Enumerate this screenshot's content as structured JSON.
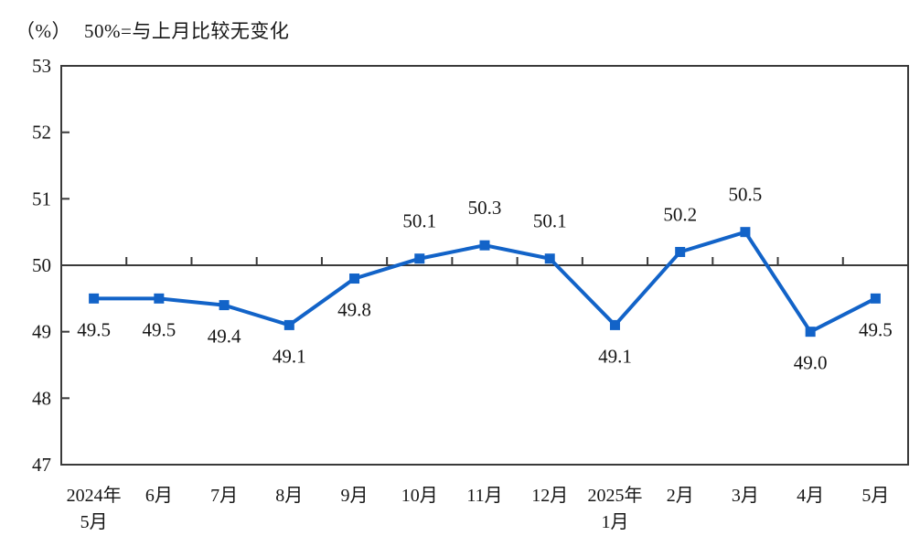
{
  "header": {
    "unit": "（%）",
    "title": "50%=与上月比较无变化"
  },
  "chart_data": {
    "type": "line",
    "title": "50%=与上月比较无变化",
    "unit_label": "（%）",
    "categories": [
      {
        "top": "2024年",
        "bottom": "5月"
      },
      {
        "top": "6月",
        "bottom": ""
      },
      {
        "top": "7月",
        "bottom": ""
      },
      {
        "top": "8月",
        "bottom": ""
      },
      {
        "top": "9月",
        "bottom": ""
      },
      {
        "top": "10月",
        "bottom": ""
      },
      {
        "top": "11月",
        "bottom": ""
      },
      {
        "top": "12月",
        "bottom": ""
      },
      {
        "top": "2025年",
        "bottom": "1月"
      },
      {
        "top": "2月",
        "bottom": ""
      },
      {
        "top": "3月",
        "bottom": ""
      },
      {
        "top": "4月",
        "bottom": ""
      },
      {
        "top": "5月",
        "bottom": ""
      }
    ],
    "values": [
      49.5,
      49.5,
      49.4,
      49.1,
      49.8,
      50.1,
      50.3,
      50.1,
      49.1,
      50.2,
      50.5,
      49.0,
      49.5
    ],
    "point_labels": [
      "49.5",
      "49.5",
      "49.4",
      "49.1",
      "49.8",
      "50.1",
      "50.3",
      "50.1",
      "49.1",
      "50.2",
      "50.5",
      "49.0",
      "49.5"
    ],
    "label_placement": [
      "below",
      "below",
      "below",
      "below",
      "below",
      "above",
      "above",
      "above",
      "below",
      "above",
      "above",
      "below",
      "below"
    ],
    "xlabel": "",
    "ylabel": "",
    "ylim": [
      47,
      53
    ],
    "y_ticks": [
      47,
      48,
      49,
      50,
      51,
      52,
      53
    ],
    "reference_line": 50,
    "grid": false,
    "legend_position": "none",
    "colors": {
      "series": "#1263C8",
      "axis": "#3A3A3A",
      "text": "#161616"
    }
  }
}
